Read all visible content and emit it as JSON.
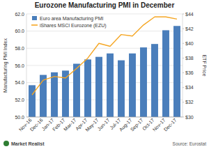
{
  "chart_data": {
    "type": "bar",
    "title": "Eurozone Manufacturing PMI in December",
    "y_label": "Manufacturing PMI Index",
    "y2_label": "ETF Price",
    "annotations": [
      "Source: Eurostat",
      "Market Realist"
    ],
    "categories": [
      "Nov-16",
      "Dec-16",
      "Jan-17",
      "Feb-17",
      "Mar-17",
      "Apr-17",
      "May-17",
      "Jun-17",
      "Jul-17",
      "Aug-17",
      "Sep-17",
      "Oct-17",
      "Nov-17",
      "Dec-17"
    ],
    "series": [
      {
        "name": "Euro area Manufacturing PMI",
        "type": "bar",
        "color": "#4a7ebb",
        "values": [
          53.7,
          54.9,
          55.2,
          55.4,
          56.2,
          56.7,
          57.0,
          57.4,
          56.6,
          57.4,
          58.1,
          58.5,
          60.1,
          60.6
        ]
      },
      {
        "name": "iShares MSCI Eurozone (EZU)",
        "type": "line",
        "axis": "y2",
        "color": "#f5a623",
        "values": [
          33.0,
          35.0,
          35.5,
          35.3,
          36.6,
          38.0,
          40.0,
          39.6,
          41.2,
          41.0,
          42.5,
          43.6,
          43.6,
          43.3
        ]
      }
    ],
    "ylim": [
      50,
      62
    ],
    "yticks": [
      {
        "value": 50,
        "label": "50.0"
      },
      {
        "value": 52,
        "label": "52.0"
      },
      {
        "value": 54,
        "label": "54.0"
      },
      {
        "value": 56,
        "label": "56.0"
      },
      {
        "value": 58,
        "label": "58.0"
      },
      {
        "value": 60,
        "label": "60.0"
      },
      {
        "value": 62,
        "label": "62.0"
      }
    ],
    "y2lim": [
      30,
      44
    ],
    "y2ticks": [
      {
        "value": 30,
        "label": "$30"
      },
      {
        "value": 32,
        "label": "$32"
      },
      {
        "value": 34,
        "label": "$34"
      },
      {
        "value": 36,
        "label": "$36"
      },
      {
        "value": 38,
        "label": "$38"
      },
      {
        "value": 40,
        "label": "$40"
      },
      {
        "value": 42,
        "label": "$42"
      },
      {
        "value": 44,
        "label": "$44"
      }
    ],
    "grid": true,
    "legend": "top-left"
  }
}
